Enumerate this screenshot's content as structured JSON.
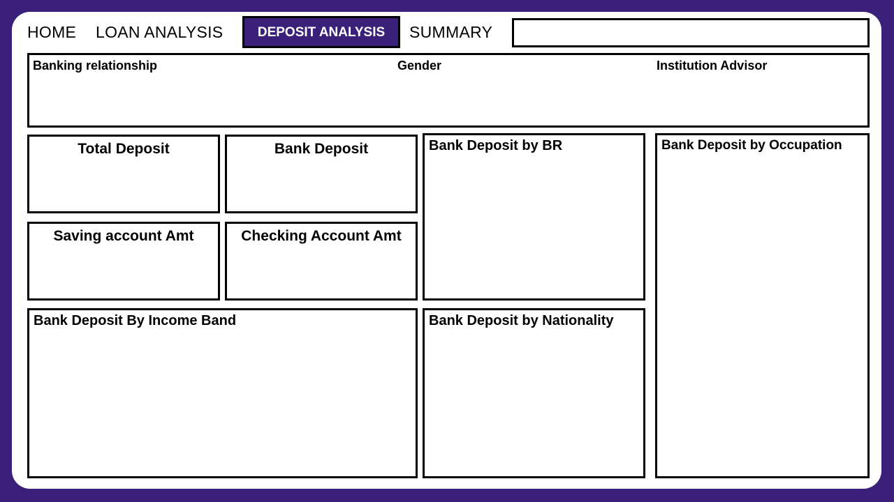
{
  "nav": {
    "home": "HOME",
    "loan_analysis": "LOAN ANALYSIS",
    "deposit_analysis": "DEPOSIT ANALYSIS",
    "summary": "SUMMARY"
  },
  "filters": {
    "banking_relationship": "Banking relationship",
    "gender": "Gender",
    "institution_advisor": "Institution Advisor"
  },
  "kpis": {
    "total_deposit": "Total Deposit",
    "bank_deposit": "Bank Deposit",
    "saving_account_amt": "Saving account Amt",
    "checking_account_amt": "Checking Account Amt"
  },
  "charts": {
    "by_br": "Bank Deposit by BR",
    "by_occupation": "Bank Deposit by Occupation",
    "by_income_band": "Bank Deposit By Income Band",
    "by_nationality": "Bank Deposit by Nationality"
  },
  "colors": {
    "accent": "#3a2078",
    "canvas": "#ffffff",
    "border": "#000000"
  }
}
